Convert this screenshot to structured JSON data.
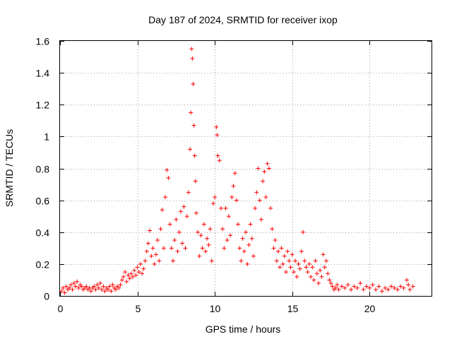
{
  "chart_data": {
    "type": "scatter",
    "title": "Day 187 of 2024, SRMTID for receiver ixop",
    "xlabel": "GPS time / hours",
    "ylabel": "SRMTID / TECUs",
    "xlim": [
      0,
      24
    ],
    "ylim": [
      0,
      1.6
    ],
    "grid": true,
    "marker": "+",
    "series_color": "#ff0000",
    "x_ticks": [
      {
        "value": 0,
        "label": "0"
      },
      {
        "value": 5,
        "label": "5"
      },
      {
        "value": 10,
        "label": "10"
      },
      {
        "value": 15,
        "label": "15"
      },
      {
        "value": 20,
        "label": "20"
      }
    ],
    "y_ticks": [
      {
        "value": 0,
        "label": "0"
      },
      {
        "value": 0.2,
        "label": "0.2"
      },
      {
        "value": 0.4,
        "label": "0.4"
      },
      {
        "value": 0.6,
        "label": "0.6"
      },
      {
        "value": 0.8,
        "label": "0.8"
      },
      {
        "value": 1.0,
        "label": "1"
      },
      {
        "value": 1.2,
        "label": "1.2"
      },
      {
        "value": 1.4,
        "label": "1.4"
      },
      {
        "value": 1.6,
        "label": "1.6"
      }
    ],
    "series": [
      {
        "name": "SRMTID",
        "points": [
          [
            0.1,
            0.03
          ],
          [
            0.2,
            0.05
          ],
          [
            0.3,
            0.02
          ],
          [
            0.4,
            0.06
          ],
          [
            0.5,
            0.04
          ],
          [
            0.6,
            0.05
          ],
          [
            0.7,
            0.07
          ],
          [
            0.8,
            0.04
          ],
          [
            0.9,
            0.08
          ],
          [
            1.0,
            0.06
          ],
          [
            1.1,
            0.09
          ],
          [
            1.2,
            0.05
          ],
          [
            1.3,
            0.07
          ],
          [
            1.4,
            0.06
          ],
          [
            1.5,
            0.04
          ],
          [
            1.6,
            0.05
          ],
          [
            1.7,
            0.06
          ],
          [
            1.8,
            0.04
          ],
          [
            1.9,
            0.05
          ],
          [
            2.0,
            0.03
          ],
          [
            2.1,
            0.05
          ],
          [
            2.2,
            0.06
          ],
          [
            2.3,
            0.04
          ],
          [
            2.4,
            0.07
          ],
          [
            2.5,
            0.05
          ],
          [
            2.6,
            0.08
          ],
          [
            2.7,
            0.04
          ],
          [
            2.8,
            0.06
          ],
          [
            2.9,
            0.03
          ],
          [
            3.0,
            0.05
          ],
          [
            3.1,
            0.04
          ],
          [
            3.2,
            0.06
          ],
          [
            3.3,
            0.03
          ],
          [
            3.4,
            0.07
          ],
          [
            3.5,
            0.05
          ],
          [
            3.6,
            0.04
          ],
          [
            3.7,
            0.06
          ],
          [
            3.8,
            0.05
          ],
          [
            3.9,
            0.07
          ],
          [
            4.0,
            0.1
          ],
          [
            4.1,
            0.12
          ],
          [
            4.2,
            0.15
          ],
          [
            4.3,
            0.09
          ],
          [
            4.4,
            0.13
          ],
          [
            4.5,
            0.11
          ],
          [
            4.6,
            0.14
          ],
          [
            4.7,
            0.12
          ],
          [
            4.8,
            0.16
          ],
          [
            4.9,
            0.13
          ],
          [
            5.0,
            0.18
          ],
          [
            5.1,
            0.15
          ],
          [
            5.2,
            0.2
          ],
          [
            5.3,
            0.14
          ],
          [
            5.4,
            0.17
          ],
          [
            5.5,
            0.22
          ],
          [
            5.6,
            0.28
          ],
          [
            5.7,
            0.33
          ],
          [
            5.8,
            0.41
          ],
          [
            5.9,
            0.25
          ],
          [
            6.0,
            0.3
          ],
          [
            6.1,
            0.2
          ],
          [
            6.2,
            0.26
          ],
          [
            6.3,
            0.35
          ],
          [
            6.4,
            0.22
          ],
          [
            6.5,
            0.42
          ],
          [
            6.6,
            0.54
          ],
          [
            6.7,
            0.3
          ],
          [
            6.8,
            0.62
          ],
          [
            6.9,
            0.79
          ],
          [
            7.0,
            0.74
          ],
          [
            7.1,
            0.45
          ],
          [
            7.2,
            0.3
          ],
          [
            7.3,
            0.22
          ],
          [
            7.4,
            0.35
          ],
          [
            7.5,
            0.48
          ],
          [
            7.6,
            0.28
          ],
          [
            7.7,
            0.4
          ],
          [
            7.8,
            0.53
          ],
          [
            7.9,
            0.33
          ],
          [
            8.0,
            0.56
          ],
          [
            8.1,
            0.3
          ],
          [
            8.2,
            0.5
          ],
          [
            8.3,
            0.65
          ],
          [
            8.4,
            0.92
          ],
          [
            8.45,
            1.15
          ],
          [
            8.5,
            1.55
          ],
          [
            8.55,
            1.49
          ],
          [
            8.6,
            1.33
          ],
          [
            8.65,
            1.07
          ],
          [
            8.7,
            0.88
          ],
          [
            8.75,
            0.72
          ],
          [
            8.8,
            0.52
          ],
          [
            8.9,
            0.4
          ],
          [
            9.0,
            0.25
          ],
          [
            9.1,
            0.38
          ],
          [
            9.2,
            0.3
          ],
          [
            9.3,
            0.45
          ],
          [
            9.4,
            0.28
          ],
          [
            9.5,
            0.36
          ],
          [
            9.6,
            0.32
          ],
          [
            9.7,
            0.42
          ],
          [
            9.8,
            0.22
          ],
          [
            9.9,
            0.58
          ],
          [
            10.0,
            0.62
          ],
          [
            10.1,
            1.06
          ],
          [
            10.15,
            1.01
          ],
          [
            10.2,
            0.88
          ],
          [
            10.3,
            0.85
          ],
          [
            10.4,
            0.55
          ],
          [
            10.5,
            0.42
          ],
          [
            10.6,
            0.3
          ],
          [
            10.7,
            0.55
          ],
          [
            10.8,
            0.35
          ],
          [
            10.9,
            0.5
          ],
          [
            11.0,
            0.38
          ],
          [
            11.1,
            0.62
          ],
          [
            11.2,
            0.69
          ],
          [
            11.3,
            0.77
          ],
          [
            11.4,
            0.6
          ],
          [
            11.5,
            0.45
          ],
          [
            11.6,
            0.3
          ],
          [
            11.7,
            0.22
          ],
          [
            11.8,
            0.36
          ],
          [
            11.9,
            0.28
          ],
          [
            12.0,
            0.4
          ],
          [
            12.1,
            0.2
          ],
          [
            12.2,
            0.32
          ],
          [
            12.3,
            0.45
          ],
          [
            12.4,
            0.36
          ],
          [
            12.5,
            0.25
          ],
          [
            12.6,
            0.55
          ],
          [
            12.7,
            0.65
          ],
          [
            12.8,
            0.8
          ],
          [
            12.9,
            0.6
          ],
          [
            13.0,
            0.48
          ],
          [
            13.1,
            0.72
          ],
          [
            13.2,
            0.78
          ],
          [
            13.3,
            0.62
          ],
          [
            13.4,
            0.83
          ],
          [
            13.5,
            0.8
          ],
          [
            13.6,
            0.55
          ],
          [
            13.7,
            0.42
          ],
          [
            13.8,
            0.3
          ],
          [
            13.9,
            0.35
          ],
          [
            14.0,
            0.22
          ],
          [
            14.1,
            0.28
          ],
          [
            14.2,
            0.18
          ],
          [
            14.3,
            0.3
          ],
          [
            14.4,
            0.2
          ],
          [
            14.5,
            0.25
          ],
          [
            14.6,
            0.15
          ],
          [
            14.7,
            0.28
          ],
          [
            14.8,
            0.22
          ],
          [
            14.9,
            0.18
          ],
          [
            15.0,
            0.26
          ],
          [
            15.1,
            0.15
          ],
          [
            15.2,
            0.22
          ],
          [
            15.3,
            0.12
          ],
          [
            15.4,
            0.2
          ],
          [
            15.5,
            0.17
          ],
          [
            15.6,
            0.28
          ],
          [
            15.7,
            0.4
          ],
          [
            15.8,
            0.22
          ],
          [
            15.9,
            0.18
          ],
          [
            16.0,
            0.15
          ],
          [
            16.1,
            0.2
          ],
          [
            16.2,
            0.12
          ],
          [
            16.3,
            0.18
          ],
          [
            16.4,
            0.1
          ],
          [
            16.5,
            0.22
          ],
          [
            16.6,
            0.14
          ],
          [
            16.7,
            0.08
          ],
          [
            16.8,
            0.16
          ],
          [
            16.9,
            0.12
          ],
          [
            17.0,
            0.26
          ],
          [
            17.1,
            0.18
          ],
          [
            17.2,
            0.22
          ],
          [
            17.3,
            0.14
          ],
          [
            17.4,
            0.1
          ],
          [
            17.5,
            0.08
          ],
          [
            17.6,
            0.06
          ],
          [
            17.7,
            0.04
          ],
          [
            17.8,
            0.05
          ],
          [
            17.9,
            0.07
          ],
          [
            18.0,
            0.04
          ],
          [
            18.2,
            0.06
          ],
          [
            18.4,
            0.05
          ],
          [
            18.6,
            0.07
          ],
          [
            18.8,
            0.04
          ],
          [
            19.0,
            0.06
          ],
          [
            19.2,
            0.05
          ],
          [
            19.4,
            0.08
          ],
          [
            19.6,
            0.04
          ],
          [
            19.8,
            0.06
          ],
          [
            20.0,
            0.05
          ],
          [
            20.2,
            0.07
          ],
          [
            20.4,
            0.04
          ],
          [
            20.6,
            0.06
          ],
          [
            20.8,
            0.03
          ],
          [
            21.0,
            0.05
          ],
          [
            21.2,
            0.04
          ],
          [
            21.4,
            0.06
          ],
          [
            21.6,
            0.05
          ],
          [
            21.8,
            0.04
          ],
          [
            22.0,
            0.06
          ],
          [
            22.2,
            0.05
          ],
          [
            22.4,
            0.1
          ],
          [
            22.5,
            0.07
          ],
          [
            22.6,
            0.04
          ],
          [
            22.8,
            0.06
          ]
        ]
      }
    ]
  }
}
